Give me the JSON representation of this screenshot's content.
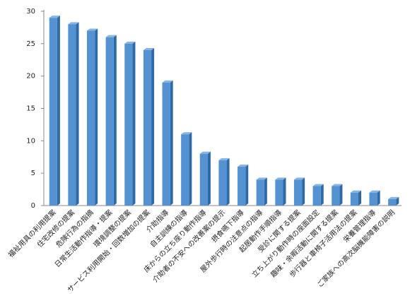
{
  "chart_data": {
    "type": "bar",
    "categories": [
      "福祉用具の利用提案",
      "住宅改修の提案",
      "危険行為の指摘",
      "日常生活動作指導・提案",
      "環境調整の提案",
      "サービス利用開始・回数増加の提案",
      "介助指導",
      "自主訓練の指導",
      "床からの立ち座り動作指導",
      "介助者の不安への改善案の提示",
      "摂食嚥下指導",
      "屋外歩行時の注意点の指導",
      "起居動作手順指導",
      "受診に関する提案",
      "立ち上がり動作時の座面設定",
      "趣味・余暇活動に関する提案",
      "歩行器と車椅子活用法の提案",
      "栄養管理指導",
      "ご家族への高次脳機能障害の説明"
    ],
    "values": [
      29,
      28,
      27,
      26,
      25,
      24,
      19,
      11,
      8,
      7,
      6,
      4,
      4,
      4,
      3,
      3,
      2,
      2,
      1
    ],
    "color": "#5592d2",
    "ylim": [
      0,
      30
    ],
    "yticks": [
      0,
      5,
      10,
      15,
      20,
      25,
      30
    ],
    "grid": false
  }
}
